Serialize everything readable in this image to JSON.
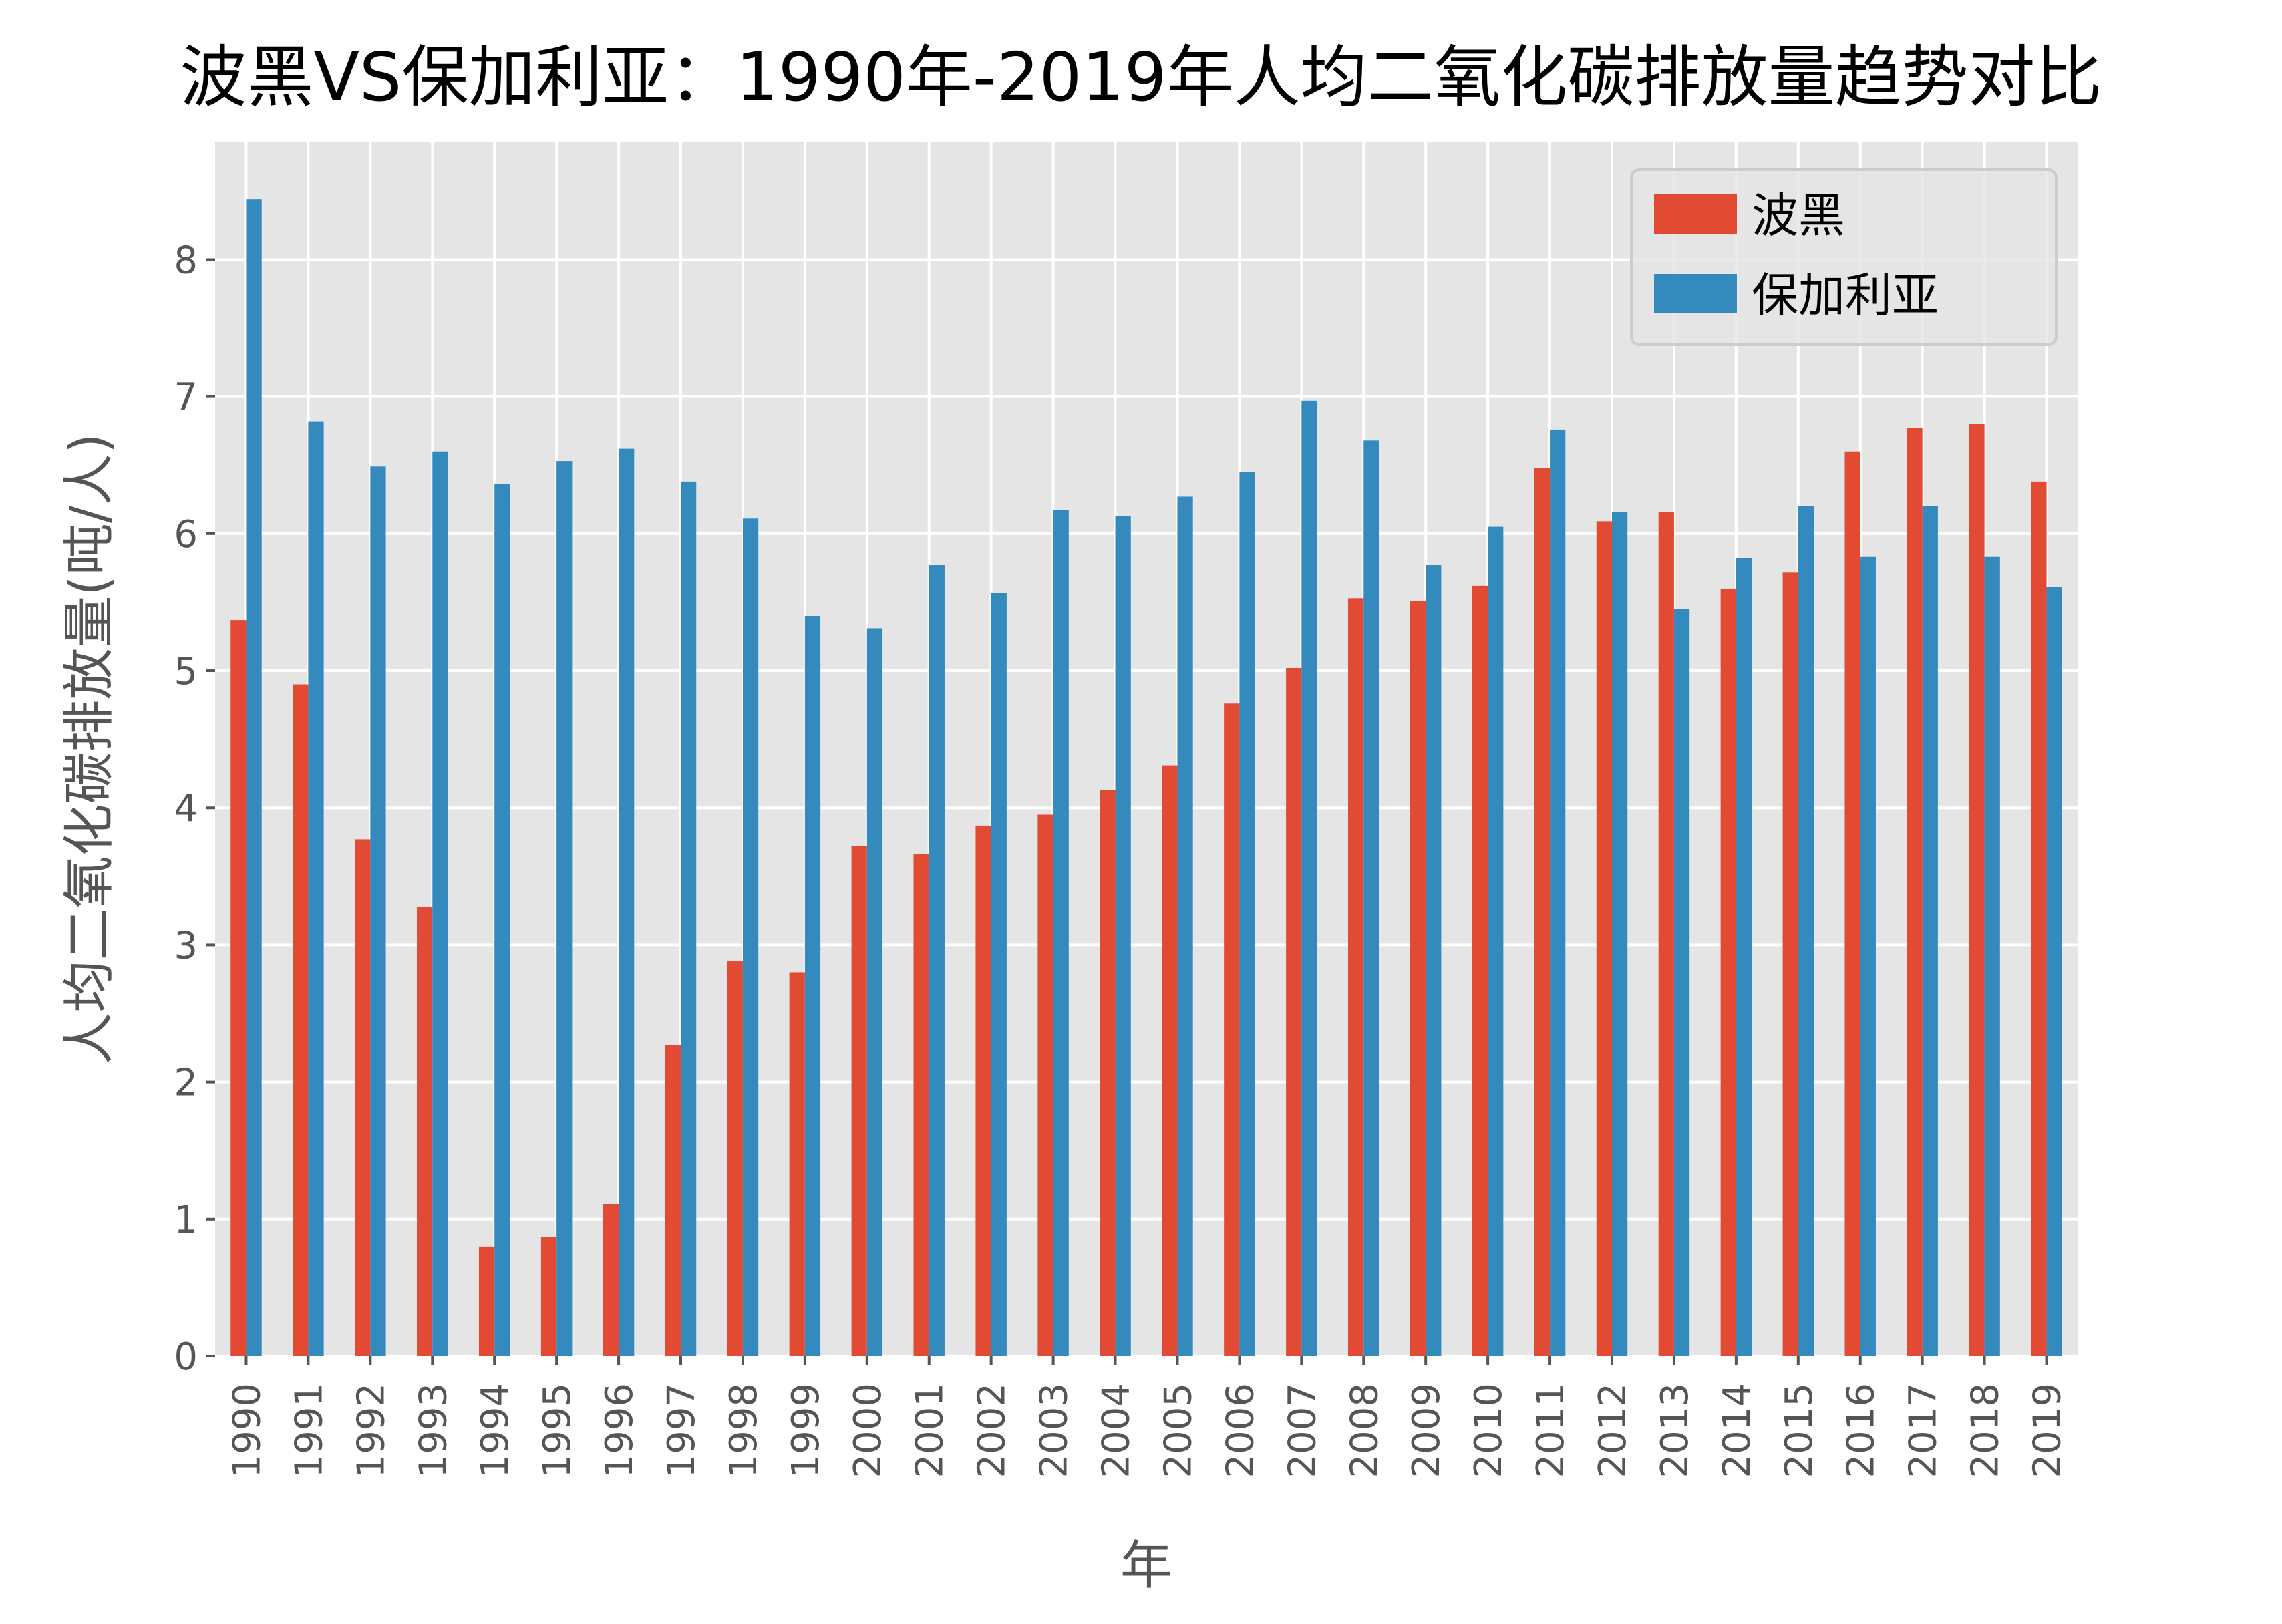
{
  "chart_data": {
    "type": "bar",
    "title": "波黑VS保加利亚：1990年-2019年人均二氧化碳排放量趋势对比",
    "xlabel": "年",
    "ylabel": "人均二氧化碳排放量(吨/人)",
    "categories": [
      "1990",
      "1991",
      "1992",
      "1993",
      "1994",
      "1995",
      "1996",
      "1997",
      "1998",
      "1999",
      "2000",
      "2001",
      "2002",
      "2003",
      "2004",
      "2005",
      "2006",
      "2007",
      "2008",
      "2009",
      "2010",
      "2011",
      "2012",
      "2013",
      "2014",
      "2015",
      "2016",
      "2017",
      "2018",
      "2019"
    ],
    "series": [
      {
        "name": "波黑",
        "color": "#E24A33",
        "values": [
          5.37,
          4.9,
          3.77,
          3.28,
          0.8,
          0.87,
          1.11,
          2.27,
          2.88,
          2.8,
          3.72,
          3.66,
          3.87,
          3.95,
          4.13,
          4.31,
          4.76,
          5.02,
          5.53,
          5.51,
          5.62,
          6.48,
          6.09,
          6.16,
          5.6,
          5.72,
          6.6,
          6.77,
          6.8,
          6.38
        ]
      },
      {
        "name": "保加利亚",
        "color": "#348ABD",
        "values": [
          8.44,
          6.82,
          6.49,
          6.6,
          6.36,
          6.53,
          6.62,
          6.38,
          6.11,
          5.4,
          5.31,
          5.77,
          5.57,
          6.17,
          6.13,
          6.27,
          6.45,
          6.97,
          6.68,
          5.77,
          6.05,
          6.76,
          6.16,
          5.45,
          5.82,
          6.2,
          5.83,
          6.2,
          5.83,
          5.61
        ]
      }
    ],
    "yticks": [
      "0",
      "1",
      "2",
      "3",
      "4",
      "5",
      "6",
      "7",
      "8"
    ],
    "ylim": [
      0,
      8.86
    ],
    "grid": true,
    "legend": "top-right",
    "background": "#E5E5E5"
  }
}
